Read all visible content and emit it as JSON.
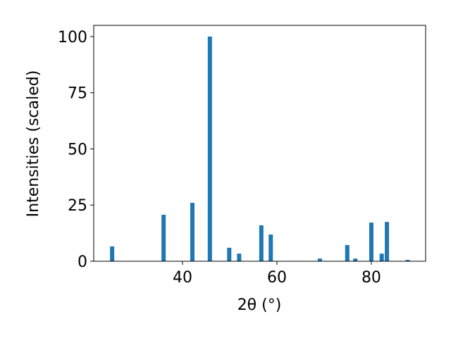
{
  "chart_data": {
    "type": "bar",
    "xlabel": "2θ (°)",
    "ylabel": "Intensities (scaled)",
    "x": [
      25.1,
      36.0,
      42.1,
      45.8,
      49.9,
      52.0,
      56.7,
      58.7,
      69.1,
      74.9,
      76.6,
      80.0,
      82.2,
      83.3,
      87.7
    ],
    "values": [
      6.6,
      20.7,
      26.0,
      100,
      6.0,
      3.4,
      16.0,
      11.9,
      1.2,
      7.2,
      1.2,
      17.2,
      3.4,
      17.5,
      0.6
    ],
    "color": "#1f77b4",
    "xlim": [
      21.2,
      91.5
    ],
    "xticks": [
      40,
      60,
      80
    ],
    "ylim": [
      0,
      105
    ],
    "yticks": [
      0,
      25,
      50,
      75,
      100
    ],
    "grid": false
  }
}
